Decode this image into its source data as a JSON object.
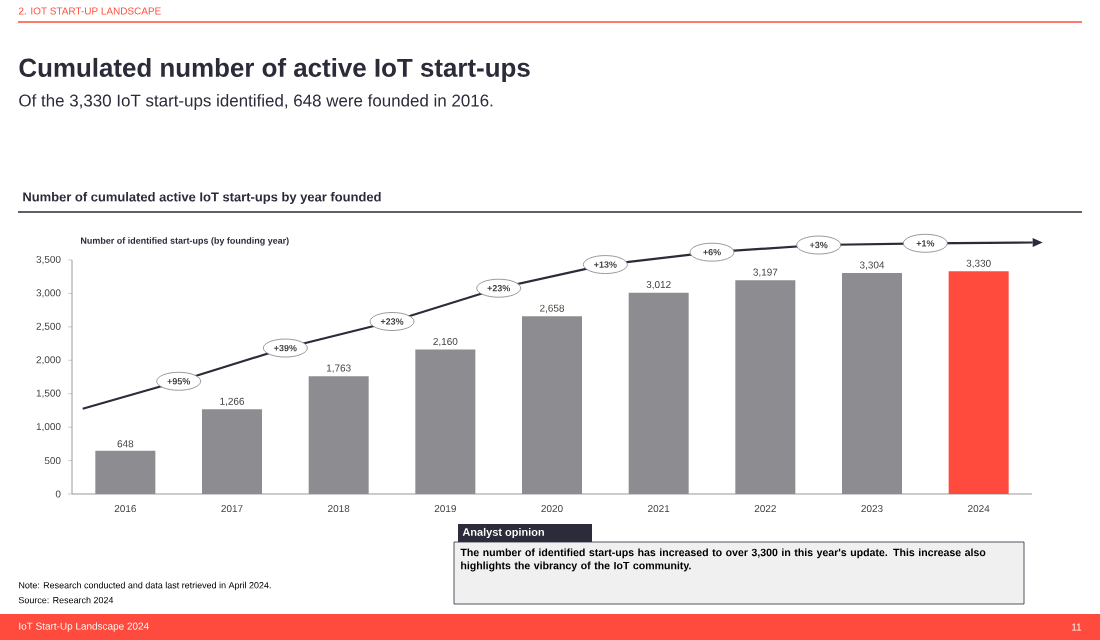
{
  "chart_data": {
    "type": "bar",
    "title": "Cumulated number of active IoT start-ups",
    "subtitle": "Of the 3,330 IoT start-ups identified, 648 were founded in 2016.",
    "ylabel": "Number of identified start-ups (by founding year)",
    "categories": [
      "2016",
      "2017",
      "2018",
      "2019",
      "2020",
      "2021",
      "2022",
      "2023",
      "2024"
    ],
    "values": [
      648,
      1266,
      1763,
      2160,
      2658,
      3012,
      3197,
      3304,
      3330
    ],
    "value_labels": [
      "648",
      "1,266",
      "1,763",
      "2,160",
      "2,658",
      "3,012",
      "3,197",
      "3,304",
      "3,330"
    ],
    "colors": [
      "#8c8c91",
      "#8c8c91",
      "#8c8c91",
      "#8c8c91",
      "#8c8c91",
      "#8c8c91",
      "#8c8c91",
      "#8c8c91",
      "#ff4b3e"
    ],
    "ylim": [
      0,
      3500
    ],
    "yticks": [
      0,
      500,
      {
        "value": 1000,
        "label": "1,000"
      },
      {
        "value": 1500,
        "label": "1,500"
      },
      {
        "value": 2000,
        "label": "2,000"
      },
      {
        "value": 2500,
        "label": "2,500"
      },
      {
        "value": 3000,
        "label": "3,000"
      },
      {
        "value": 3500,
        "label": "3,500"
      }
    ],
    "grid": false,
    "annotations": [
      "2. IOT START-UP LANDSCAPE",
      "Number of cumulated **active IoT start-ups by year founded**",
      "+95%",
      "+39%",
      "+23%",
      "+23%",
      "+13%",
      "+6%",
      "+3%",
      "+1%",
      "Analyst opinion",
      "The number of identified start-ups has increased to over 3,300 in this year's update. This increase also highlights the vibrancy of the IoT community.",
      "Note: Research conducted and data last retrieved in April 2024.",
      "Source: Research 2024",
      "IoT Start-Up Landscape 2024",
      "11"
    ]
  }
}
